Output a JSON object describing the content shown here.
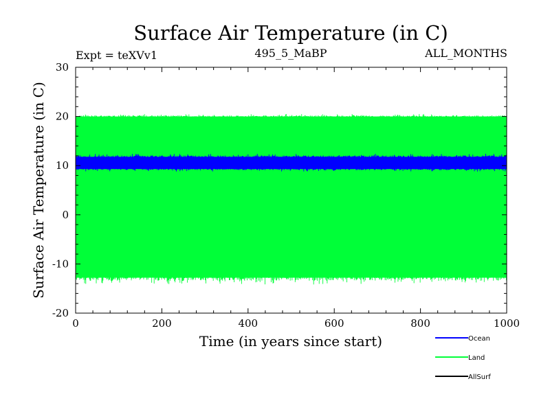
{
  "chart_data": {
    "type": "line",
    "title": "Surface Air Temperature (in C)",
    "subtitle_left": "Expt = teXVv1",
    "subtitle_center": "495_5_MaBP",
    "subtitle_right": "ALL_MONTHS",
    "xlabel": "Time (in years since start)",
    "ylabel": "Surface Air Temperature (in C)",
    "xlim": [
      0,
      1000
    ],
    "ylim": [
      -20,
      30
    ],
    "x_ticks": [
      0,
      200,
      400,
      600,
      800,
      1000
    ],
    "x_tick_labels": [
      "0",
      "200",
      "400",
      "600",
      "800",
      "1000"
    ],
    "y_ticks": [
      -20,
      -10,
      0,
      10,
      20,
      30
    ],
    "y_tick_labels": [
      "-20",
      "-10",
      "0",
      "10",
      "20",
      "30"
    ],
    "grid": false,
    "legend_position": "bottom-right",
    "series": [
      {
        "name": "Land",
        "color": "#00ff38",
        "mean": 3.5,
        "upper_envelope": 20,
        "lower_envelope": -12.8,
        "upper_peak": 20.5,
        "lower_peak": -14.2
      },
      {
        "name": "Ocean",
        "color": "#0000ff",
        "mean": 10.5,
        "upper_envelope": 11.8,
        "lower_envelope": 9.3,
        "upper_peak": 12.4,
        "lower_peak": 8.8
      },
      {
        "name": "AllSurf",
        "color": "#000000",
        "mean": null,
        "upper_envelope": null,
        "lower_envelope": null,
        "upper_peak": null,
        "lower_peak": null
      }
    ],
    "legend": [
      {
        "name": "Ocean",
        "color": "#0000ff"
      },
      {
        "name": "Land",
        "color": "#00ff38"
      },
      {
        "name": "AllSurf",
        "color": "#000000"
      }
    ]
  }
}
